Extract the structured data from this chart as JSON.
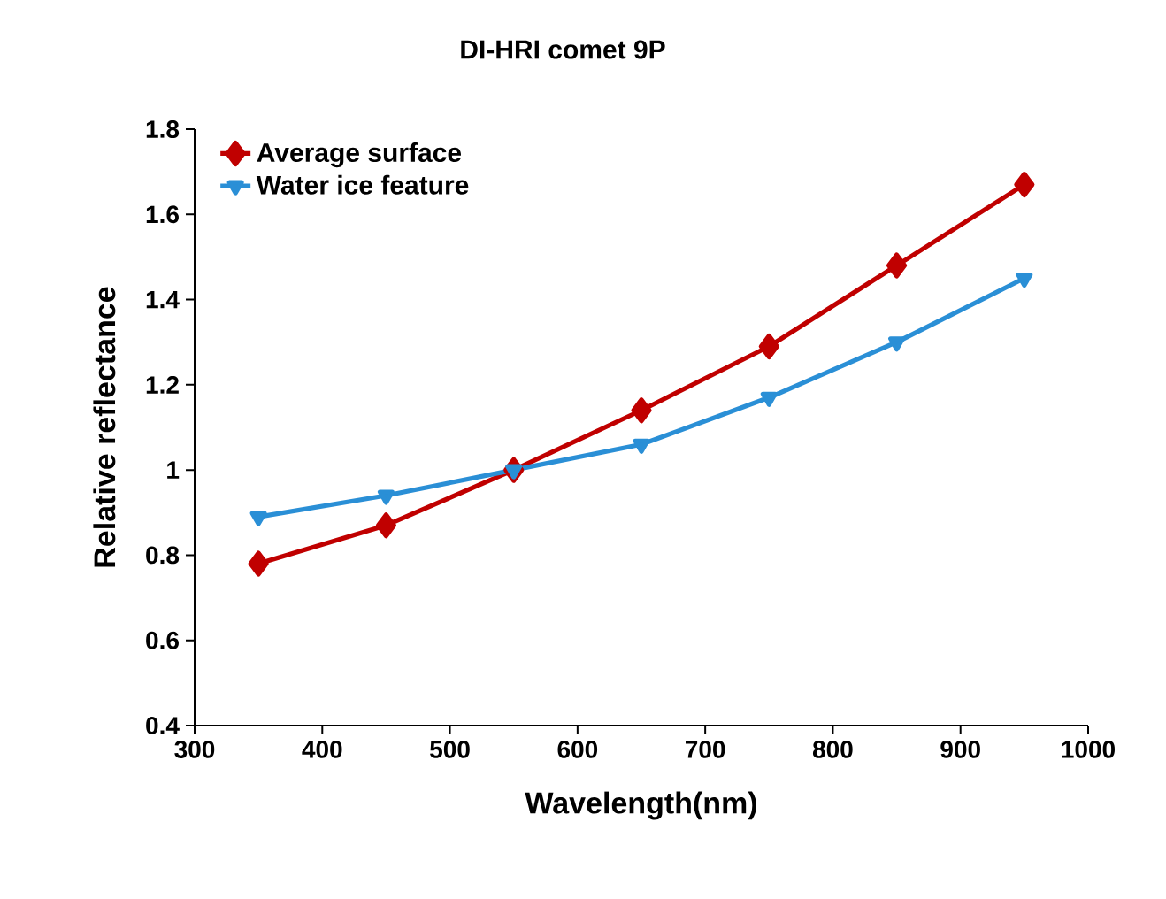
{
  "chart_data": {
    "type": "line",
    "title": "DI-HRI comet 9P",
    "xlabel": "Wavelength(nm)",
    "ylabel": "Relative reflectance",
    "x": [
      350,
      450,
      550,
      650,
      750,
      850,
      950
    ],
    "series": [
      {
        "name": "Average surface",
        "color": "#c00000",
        "marker": "diamond",
        "values": [
          0.78,
          0.87,
          1.0,
          1.14,
          1.29,
          1.48,
          1.67
        ]
      },
      {
        "name": "Water ice feature",
        "color": "#2a8fd6",
        "marker": "triangle",
        "values": [
          0.89,
          0.94,
          1.0,
          1.06,
          1.17,
          1.3,
          1.45
        ]
      }
    ],
    "xlim": [
      300,
      1000
    ],
    "xticks": [
      300,
      400,
      500,
      600,
      700,
      800,
      900,
      1000
    ],
    "ylim": [
      0.4,
      1.8
    ],
    "yticks": [
      0.4,
      0.6,
      0.8,
      1,
      1.2,
      1.4,
      1.6,
      1.8
    ],
    "grid": false,
    "legend": "top left",
    "line_style": "solid"
  }
}
